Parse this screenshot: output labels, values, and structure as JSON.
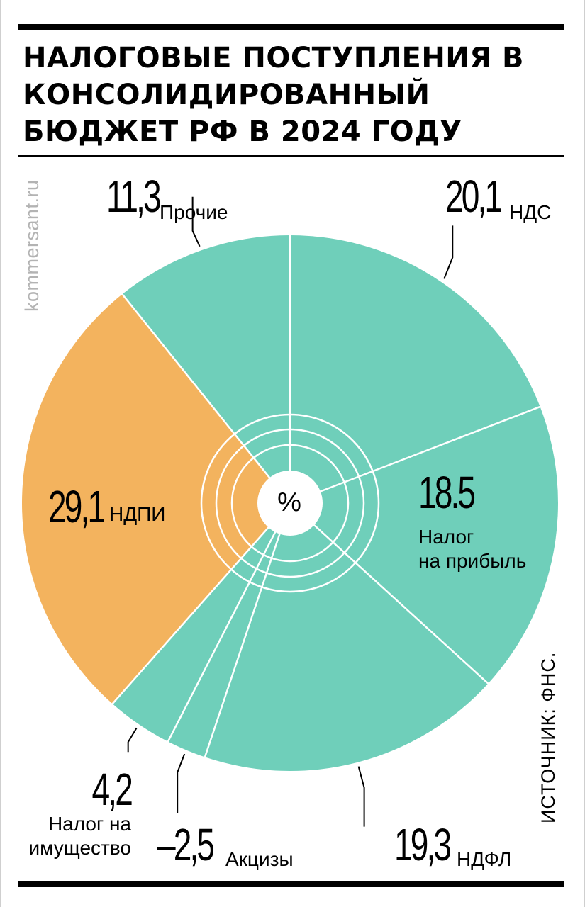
{
  "title": "НАЛОГОВЫЕ ПОСТУПЛЕНИЯ В КОНСОЛИДИРОВАННЫЙ БЮДЖЕТ РФ В 2024 ГОДУ",
  "credit": "kommersant.ru",
  "source": "ИСТОЧНИК: ФНС.",
  "center_label": "%",
  "colors": {
    "teal": "#6fcfba",
    "orange": "#f3b35e",
    "line": "#ffffff",
    "leader": "#000000"
  },
  "chart_data": {
    "type": "pie",
    "title": "НАЛОГОВЫЕ ПОСТУПЛЕНИЯ В КОНСОЛИДИРОВАННЫЙ БЮДЖЕТ РФ В 2024 ГОДУ",
    "unit": "%",
    "slices": [
      {
        "label": "НДС",
        "value_text": "20,1",
        "value": 20.1,
        "color": "#6fcfba"
      },
      {
        "label": "Налог на прибыль",
        "value_text": "18.5",
        "value": 18.5,
        "color": "#6fcfba"
      },
      {
        "label": "НДФЛ",
        "value_text": "19,3",
        "value": 19.3,
        "color": "#6fcfba"
      },
      {
        "label": "Акцизы",
        "value_text": "–2,5",
        "value": -2.5,
        "color": "#6fcfba"
      },
      {
        "label": "Налог на имущество",
        "value_text": "4,2",
        "value": 4.2,
        "color": "#6fcfba"
      },
      {
        "label": "НДПИ",
        "value_text": "29,1",
        "value": 29.1,
        "color": "#f3b35e"
      },
      {
        "label": "Прочие",
        "value_text": "11,3",
        "value": 11.3,
        "color": "#6fcfba"
      }
    ]
  },
  "labels": {
    "nds": {
      "value": "20,1",
      "name": "НДС"
    },
    "profit": {
      "value": "18.5",
      "line1": "Налог",
      "line2": "на прибыль"
    },
    "ndfl": {
      "value": "19,3",
      "name": "НДФЛ"
    },
    "excise": {
      "value": "–2,5",
      "name": "Акцизы"
    },
    "property": {
      "value": "4,2",
      "line1": "Налог на",
      "line2": "имущество"
    },
    "ndpi": {
      "value": "29,1",
      "name": "НДПИ"
    },
    "other": {
      "value": "11,3",
      "name": "Прочие"
    }
  }
}
